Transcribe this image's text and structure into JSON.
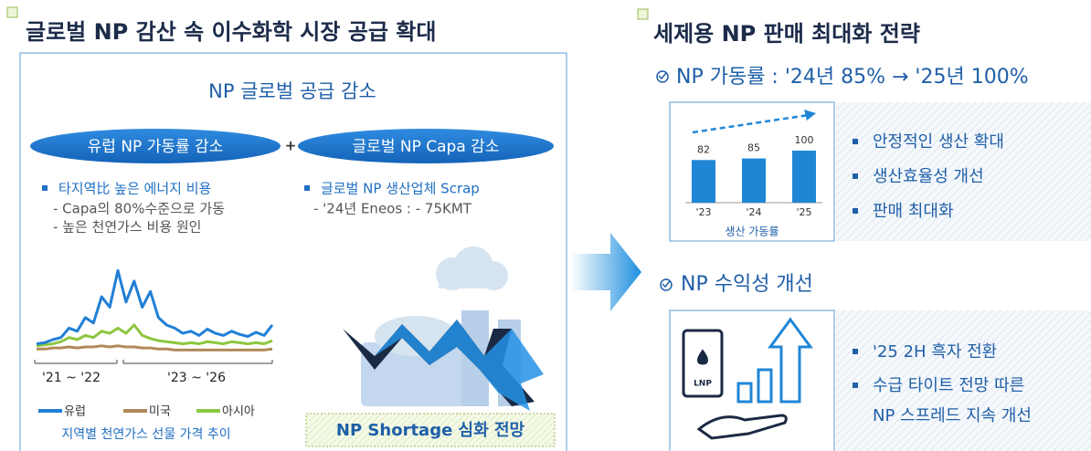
{
  "left": {
    "title": "글로벌 NP 감산 속 이수화학 시장 공급 확대",
    "panel_title": "NP 글로벌 공급 감소",
    "pills": [
      "유럽 NP 가동률 감소",
      "글로벌 NP Capa 감소"
    ],
    "plus": "+",
    "bullets_left": {
      "main": "타지역比 높은 에너지 비용",
      "subs": [
        "- Capa의 80%수준으로 가동",
        "- 높은 천연가스 비용 원인"
      ]
    },
    "bullets_right": {
      "main": "글로벌 NP 생산업체 Scrap",
      "subs": [
        "- '24년 Eneos  : - 75KMT"
      ]
    },
    "shortage": "NP Shortage 심화 전망"
  },
  "right": {
    "title": "세제용 NP 판매 최대화 전략",
    "section1": "NP 가동률 : '24년 85% → '25년 100%",
    "bullets1": [
      "안정적인 생산 확대",
      "생산효율성 개선",
      "판매 최대화"
    ],
    "section2": "NP 수익성 개선",
    "icon_label": "LNP",
    "bullets2": [
      [
        "'25 2H 흑자 전환"
      ],
      [
        "수급 타이트  전망 따른",
        "NP 스프레드 지속 개선"
      ]
    ]
  },
  "chart_data": [
    {
      "type": "line",
      "title": "지역별 천연가스 선물 가격 추이",
      "period_labels": [
        "'21 ~ '22",
        "'23 ~ '26"
      ],
      "ylim": [
        0,
        90
      ],
      "series": [
        {
          "name": "유럽",
          "color": "#1f7fd6",
          "values": [
            10,
            11,
            14,
            16,
            25,
            22,
            35,
            30,
            55,
            45,
            80,
            50,
            70,
            45,
            60,
            35,
            28,
            25,
            20,
            22,
            18,
            24,
            20,
            18,
            22,
            19,
            17,
            21,
            18,
            28
          ]
        },
        {
          "name": "미국",
          "color": "#b08a5a",
          "values": [
            5,
            5,
            6,
            6,
            7,
            6,
            7,
            7,
            8,
            7,
            8,
            7,
            7,
            6,
            6,
            5,
            5,
            4,
            4,
            4,
            4,
            4,
            4,
            4,
            4,
            4,
            4,
            4,
            4,
            5
          ]
        },
        {
          "name": "아시아",
          "color": "#8cc63f",
          "values": [
            8,
            9,
            10,
            12,
            16,
            14,
            18,
            16,
            22,
            20,
            25,
            20,
            28,
            18,
            15,
            13,
            12,
            11,
            10,
            11,
            10,
            12,
            11,
            10,
            12,
            11,
            10,
            11,
            10,
            13
          ]
        }
      ]
    },
    {
      "type": "bar",
      "title": "생산 가동률",
      "categories": [
        "'23",
        "'24",
        "'25"
      ],
      "values": [
        82,
        85,
        100
      ],
      "color": "#1f86d6",
      "ylim": [
        0,
        100
      ]
    }
  ]
}
